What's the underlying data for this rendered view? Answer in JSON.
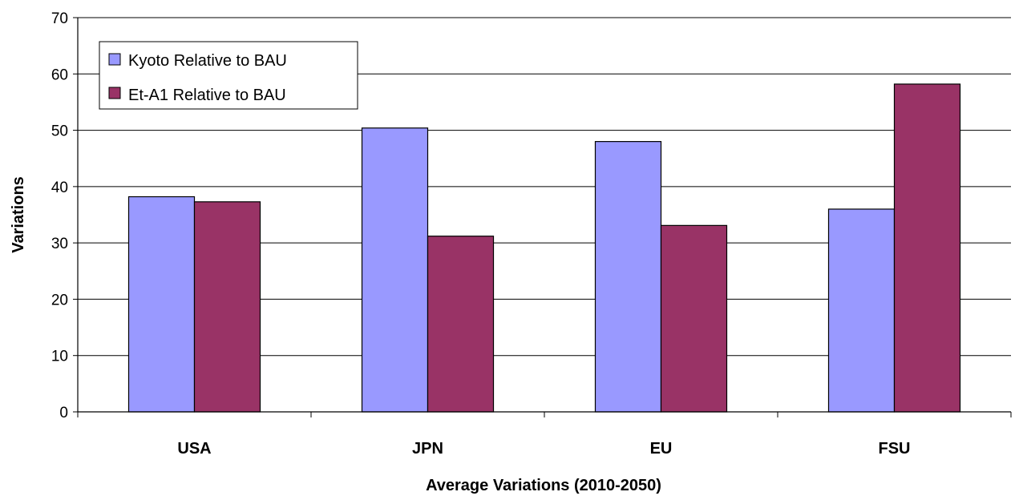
{
  "chart_data": {
    "type": "bar",
    "title": "",
    "xlabel": "Average Variations (2010-2050)",
    "ylabel": "Variations",
    "categories": [
      "USA",
      "JPN",
      "EU",
      "FSU"
    ],
    "series": [
      {
        "name": "Kyoto Relative to BAU",
        "values": [
          38.2,
          50.4,
          48.0,
          36.0
        ],
        "color": "#9999FF"
      },
      {
        "name": "Et-A1 Relative to BAU",
        "values": [
          37.3,
          31.2,
          33.1,
          58.2
        ],
        "color": "#993366"
      }
    ],
    "ylim": [
      0,
      70
    ],
    "yticks": [
      0,
      10,
      20,
      30,
      40,
      50,
      60,
      70
    ],
    "grid": true,
    "legend_position": "top-left"
  }
}
